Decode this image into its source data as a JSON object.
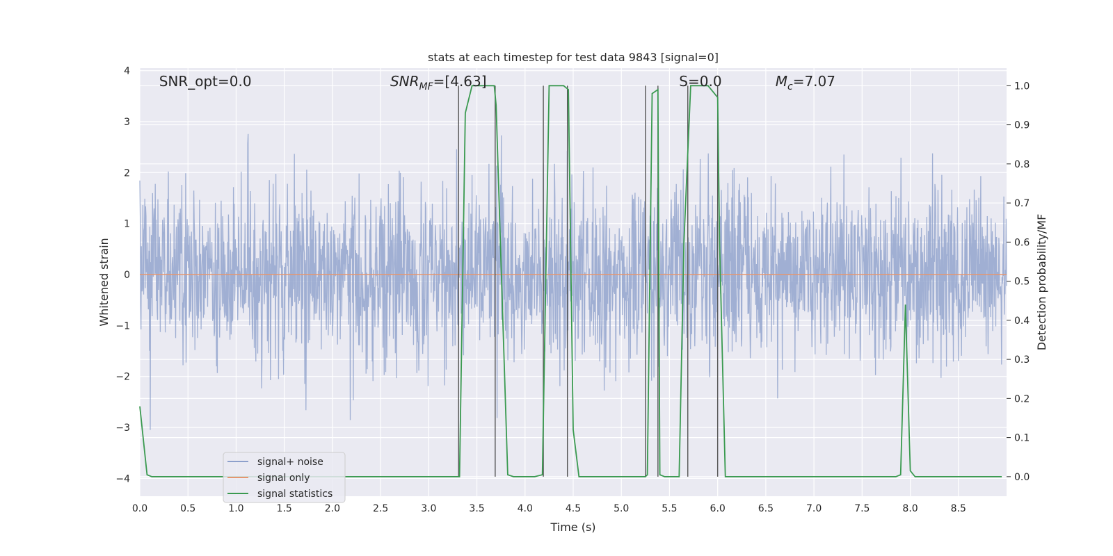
{
  "chart_data": {
    "type": "line",
    "title": "stats at each timestep for test data 9843 [signal=0]",
    "xlabel": "Time (s)",
    "ylabel": "Whitened strain",
    "y2label": "Detection probability/MF",
    "xlim": [
      0,
      9.0
    ],
    "ylim": [
      -4.35,
      4.05
    ],
    "y2lim": [
      -0.05,
      1.045
    ],
    "xticks": [
      "0.0",
      "0.5",
      "1.0",
      "1.5",
      "2.0",
      "2.5",
      "3.0",
      "3.5",
      "4.0",
      "4.5",
      "5.0",
      "5.5",
      "6.0",
      "6.5",
      "7.0",
      "7.5",
      "8.0",
      "8.5"
    ],
    "yticks": [
      "4",
      "3",
      "2",
      "1",
      "0",
      "−1",
      "−2",
      "−3",
      "−4"
    ],
    "y2ticks": [
      "1.0",
      "0.9",
      "0.8",
      "0.7",
      "0.6",
      "0.5",
      "0.4",
      "0.3",
      "0.2",
      "0.1",
      "0.0"
    ],
    "grid": true,
    "annotations": [
      {
        "text": "SNR_opt=0.0",
        "x": 0.2
      },
      {
        "text": "SNR",
        "sub": "MF",
        "suffix": "=[4.63]",
        "x": 2.6
      },
      {
        "text": "S",
        "suffix": "=0.0",
        "x": 5.6
      },
      {
        "text": "M",
        "sub": "c",
        "suffix": "=7.07",
        "x": 6.6
      }
    ],
    "legend": {
      "placement": "lower-left",
      "entries": [
        {
          "label": "signal+ noise",
          "color": "#8da0cb"
        },
        {
          "label": "signal only",
          "color": "#e5956f"
        },
        {
          "label": "signal statistics",
          "color": "#3a9a50"
        }
      ]
    },
    "series": [
      {
        "name": "signal+ noise",
        "color": "#8da0cb",
        "kind": "noise",
        "n_points": 2250,
        "sigma": 0.85,
        "seed": 9843
      },
      {
        "name": "signal only",
        "color": "#e5956f",
        "x": [
          0.0,
          9.0
        ],
        "y": [
          0.0,
          0.0
        ]
      },
      {
        "name": "signal statistics",
        "color": "#3a9a50",
        "axis": "right",
        "x": [
          0.0,
          0.075,
          0.125,
          0.5,
          1.0,
          1.5,
          2.0,
          2.5,
          3.0,
          3.3,
          3.32,
          3.38,
          3.45,
          3.5,
          3.6,
          3.68,
          3.7,
          3.75,
          3.82,
          3.88,
          4.0,
          4.1,
          4.18,
          4.25,
          4.3,
          4.4,
          4.45,
          4.5,
          4.56,
          4.65,
          5.0,
          5.25,
          5.27,
          5.32,
          5.38,
          5.4,
          5.45,
          5.52,
          5.6,
          5.65,
          5.72,
          5.78,
          5.9,
          6.0,
          6.02,
          6.08,
          6.5,
          7.0,
          7.5,
          7.85,
          7.9,
          7.95,
          8.0,
          8.05,
          8.5,
          8.95
        ],
        "y": [
          0.18,
          0.005,
          0.0,
          0.0,
          0.0,
          0.0,
          0.0,
          0.0,
          0.0,
          0.0,
          0.0,
          0.93,
          1.0,
          1.0,
          1.0,
          1.0,
          0.95,
          0.55,
          0.005,
          0.0,
          0.0,
          0.0,
          0.005,
          1.0,
          1.0,
          1.0,
          0.99,
          0.12,
          0.0,
          0.0,
          0.0,
          0.0,
          0.005,
          0.98,
          0.99,
          0.005,
          0.0,
          0.0,
          0.0,
          0.6,
          1.0,
          1.0,
          1.0,
          0.97,
          0.6,
          0.0,
          0.0,
          0.0,
          0.0,
          0.0,
          0.005,
          0.44,
          0.015,
          0.0,
          0.0,
          0.0
        ]
      }
    ],
    "vlines": [
      {
        "x": 3.31,
        "y2_from": 0.0,
        "y2_to": 1.0
      },
      {
        "x": 3.69,
        "y2_from": 0.0,
        "y2_to": 1.0
      },
      {
        "x": 4.19,
        "y2_from": 0.0,
        "y2_to": 1.0
      },
      {
        "x": 4.44,
        "y2_from": 0.0,
        "y2_to": 1.0
      },
      {
        "x": 5.25,
        "y2_from": 0.0,
        "y2_to": 1.0
      },
      {
        "x": 5.38,
        "y2_from": 0.0,
        "y2_to": 1.0
      },
      {
        "x": 5.69,
        "y2_from": 0.0,
        "y2_to": 1.0
      },
      {
        "x": 6.0,
        "y2_from": 0.0,
        "y2_to": 1.0
      }
    ]
  }
}
